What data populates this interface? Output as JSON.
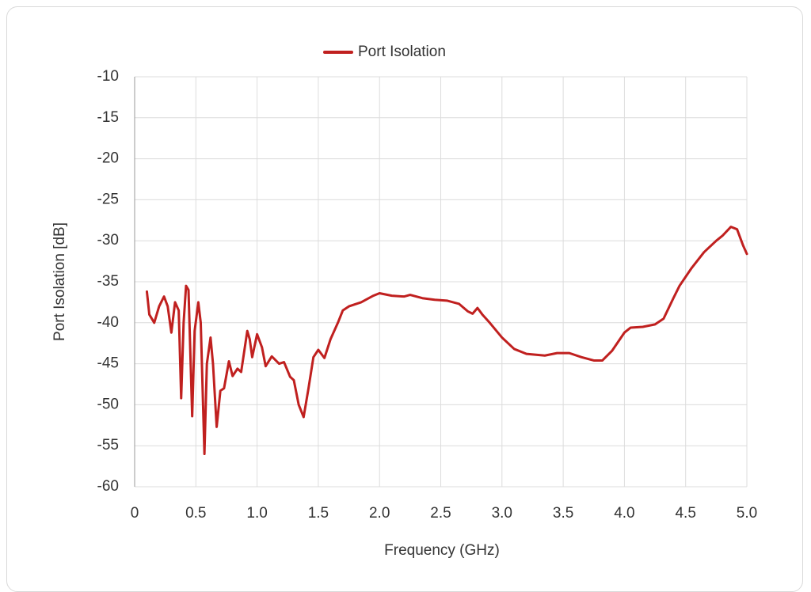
{
  "chart_data": {
    "type": "line",
    "x_label": "Frequency (GHz)",
    "y_label": "Port Isolation [dB]",
    "xlim": [
      0,
      5
    ],
    "ylim": [
      -60,
      -10
    ],
    "xticks": [
      0,
      0.5,
      {
        "value": 1,
        "label": "1.0"
      },
      1.5,
      {
        "value": 2,
        "label": "2.0"
      },
      2.5,
      {
        "value": 3,
        "label": "3.0"
      },
      3.5,
      {
        "value": 4,
        "label": "4.0"
      },
      4.5,
      {
        "value": 5,
        "label": "5.0"
      }
    ],
    "yticks": [
      -60,
      -55,
      -50,
      -45,
      -40,
      -35,
      -30,
      -25,
      -20,
      -15,
      -10
    ],
    "grid": true,
    "legend": "top",
    "series": [
      {
        "name": "Port Isolation",
        "color": "#c0201f",
        "x": [
          0.1,
          0.12,
          0.16,
          0.2,
          0.24,
          0.27,
          0.3,
          0.33,
          0.36,
          0.38,
          0.4,
          0.42,
          0.44,
          0.47,
          0.49,
          0.52,
          0.54,
          0.57,
          0.59,
          0.62,
          0.64,
          0.67,
          0.7,
          0.73,
          0.77,
          0.8,
          0.84,
          0.87,
          0.9,
          0.92,
          0.94,
          0.96,
          1.0,
          1.04,
          1.07,
          1.12,
          1.18,
          1.22,
          1.27,
          1.3,
          1.34,
          1.38,
          1.42,
          1.46,
          1.5,
          1.55,
          1.6,
          1.66,
          1.7,
          1.75,
          1.85,
          1.95,
          2.0,
          2.1,
          2.2,
          2.25,
          2.35,
          2.45,
          2.55,
          2.65,
          2.72,
          2.76,
          2.8,
          2.84,
          2.9,
          3.0,
          3.1,
          3.2,
          3.35,
          3.45,
          3.55,
          3.65,
          3.75,
          3.82,
          3.9,
          4.0,
          4.05,
          4.15,
          4.25,
          4.32,
          4.4,
          4.45,
          4.55,
          4.65,
          4.75,
          4.8,
          4.87,
          4.92,
          4.97,
          5.0
        ],
        "values": [
          -36.2,
          -39,
          -40,
          -38,
          -36.8,
          -38,
          -41.2,
          -37.5,
          -38.5,
          -49.2,
          -40,
          -35.5,
          -36,
          -51.4,
          -41,
          -37.5,
          -40,
          -56,
          -45,
          -41.8,
          -45,
          -52.7,
          -48.3,
          -48,
          -44.7,
          -46.5,
          -45.6,
          -46,
          -43,
          -41,
          -42,
          -44.2,
          -41.4,
          -43,
          -45.3,
          -44.1,
          -45,
          -44.8,
          -46.6,
          -47,
          -50,
          -51.5,
          -48,
          -44.2,
          -43.3,
          -44.3,
          -42,
          -40,
          -38.5,
          -38,
          -37.5,
          -36.7,
          -36.4,
          -36.7,
          -36.8,
          -36.6,
          -37,
          -37.2,
          -37.3,
          -37.7,
          -38.6,
          -38.9,
          -38.2,
          -39,
          -40,
          -41.8,
          -43.2,
          -43.8,
          -44,
          -43.7,
          -43.7,
          -44.2,
          -44.6,
          -44.6,
          -43.4,
          -41.2,
          -40.6,
          -40.5,
          -40.2,
          -39.5,
          -37,
          -35.5,
          -33.3,
          -31.4,
          -30,
          -29.4,
          -28.3,
          -28.6,
          -30.6,
          -31.6
        ]
      }
    ]
  }
}
